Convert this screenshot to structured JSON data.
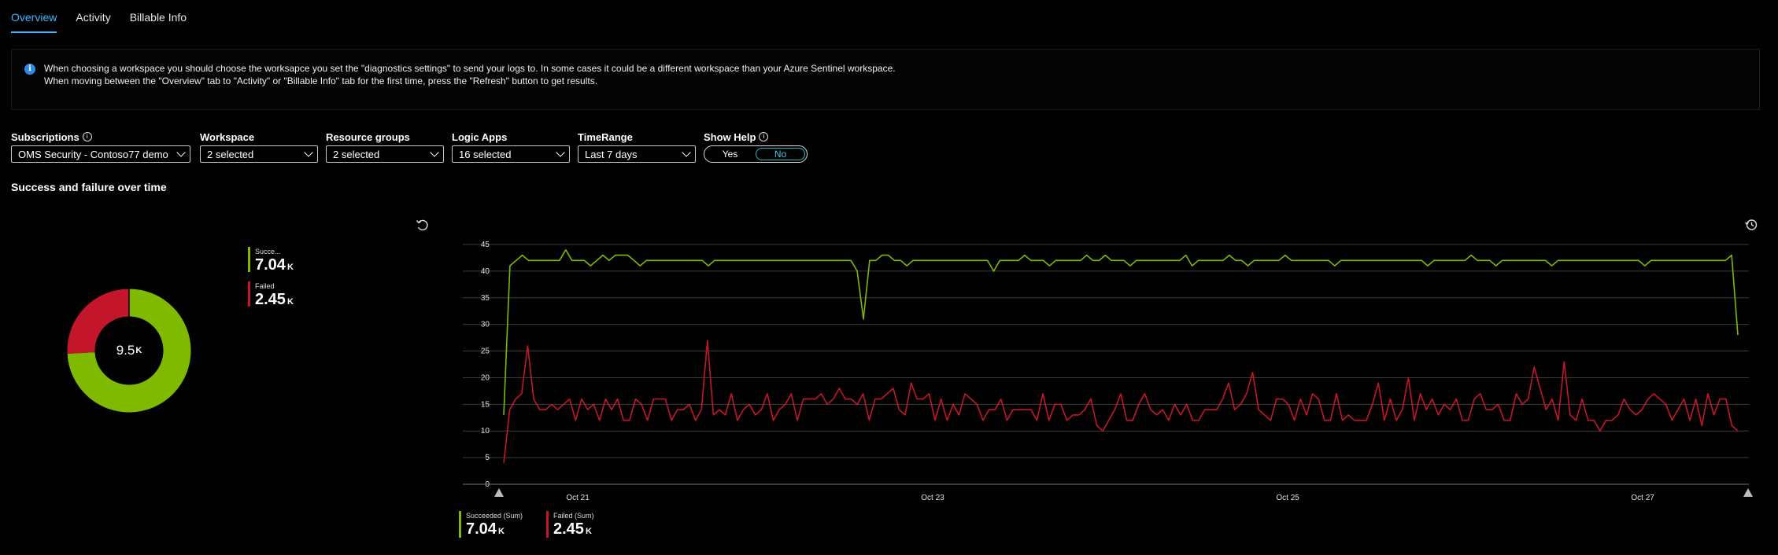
{
  "tabs": [
    {
      "label": "Overview",
      "active": true
    },
    {
      "label": "Activity",
      "active": false
    },
    {
      "label": "Billable Info",
      "active": false
    }
  ],
  "banner": {
    "line1": "When choosing a workspace you should choose the worksapce you set the \"diagnostics settings\" to send your logs to. In some cases it could be a different workspace than your Azure Sentinel workspace.",
    "line2": "When moving between the \"Overview\" tab to \"Activity\" or \"Billable Info\" tab for the first time, press the \"Refresh\" button to get results."
  },
  "filters": {
    "subscriptions": {
      "label": "Subscriptions",
      "value": "OMS Security - Contoso77 demo"
    },
    "workspace": {
      "label": "Workspace",
      "value": "2 selected"
    },
    "resource_groups": {
      "label": "Resource groups",
      "value": "2 selected"
    },
    "logic_apps": {
      "label": "Logic Apps",
      "value": "16 selected"
    },
    "time_range": {
      "label": "TimeRange",
      "value": "Last 7 days"
    },
    "show_help": {
      "label": "Show Help",
      "yes": "Yes",
      "no": "No",
      "selected": "No"
    }
  },
  "section_title": "Success and failure over time",
  "donut": {
    "total": "9.5",
    "total_unit": "K",
    "legend": [
      {
        "name": "Succe...",
        "value": "7.04",
        "unit": "K",
        "color": "#7fba00"
      },
      {
        "name": "Failed",
        "value": "2.45",
        "unit": "K",
        "color": "#c4162a"
      }
    ],
    "fractions": {
      "succeeded": 0.742,
      "failed": 0.258
    }
  },
  "chart_data": {
    "type": "line",
    "ylim": [
      0,
      45
    ],
    "yticks": [
      "0",
      "5",
      "10",
      "15",
      "20",
      "25",
      "30",
      "35",
      "40",
      "45"
    ],
    "xticks": [
      "Oct 21",
      "Oct 23",
      "Oct 25",
      "Oct 27"
    ],
    "xtick_positions": [
      0.0636,
      0.3474,
      0.6313,
      0.9151
    ],
    "series": [
      {
        "name": "Succeeded (Sum)",
        "total": "7.04",
        "unit": "K",
        "color": "#7fba00",
        "values": [
          13,
          41,
          42,
          43,
          42,
          42,
          42,
          42,
          42,
          42,
          44,
          42,
          42,
          42,
          41,
          42,
          43,
          42,
          43,
          43,
          43,
          42,
          41,
          42,
          42,
          42,
          42,
          42,
          42,
          42,
          42,
          42,
          42,
          41,
          42,
          42,
          42,
          42,
          42,
          42,
          42,
          42,
          42,
          42,
          42,
          42,
          42,
          42,
          42,
          42,
          42,
          42,
          42,
          42,
          42,
          42,
          42,
          40,
          31,
          42,
          42,
          43,
          43,
          42,
          42,
          41,
          42,
          42,
          42,
          42,
          42,
          42,
          42,
          42,
          42,
          42,
          42,
          42,
          42,
          40,
          42,
          42,
          42,
          42,
          43,
          42,
          42,
          42,
          41,
          42,
          42,
          42,
          42,
          42,
          43,
          42,
          42,
          43,
          42,
          42,
          42,
          41,
          42,
          42,
          42,
          42,
          42,
          42,
          42,
          42,
          43,
          41,
          42,
          42,
          42,
          42,
          42,
          43,
          42,
          42,
          41,
          42,
          42,
          42,
          42,
          42,
          43,
          42,
          42,
          42,
          42,
          42,
          42,
          42,
          41,
          42,
          42,
          42,
          42,
          42,
          42,
          42,
          42,
          42,
          42,
          42,
          42,
          42,
          42,
          41,
          42,
          42,
          42,
          42,
          42,
          42,
          43,
          42,
          42,
          42,
          41,
          42,
          42,
          42,
          42,
          42,
          42,
          42,
          42,
          41,
          42,
          42,
          42,
          42,
          42,
          42,
          42,
          42,
          42,
          42,
          42,
          42,
          42,
          42,
          41,
          42,
          42,
          42,
          42,
          42,
          42,
          42,
          42,
          42,
          42,
          42,
          42,
          42,
          43,
          28
        ]
      },
      {
        "name": "Failed (Sum)",
        "total": "2.45",
        "unit": "K",
        "color": "#c4162a",
        "values": [
          4,
          14,
          16,
          17,
          26,
          16,
          14,
          14,
          15,
          14,
          15,
          16,
          12,
          16,
          14,
          15,
          12,
          16,
          14,
          16,
          12,
          12,
          16,
          15,
          12,
          16,
          16,
          16,
          12,
          14,
          14,
          15,
          12,
          14,
          27,
          13,
          14,
          13,
          17,
          12,
          14,
          15,
          13,
          14,
          17,
          12,
          14,
          15,
          17,
          12,
          16,
          16,
          16,
          17,
          15,
          16,
          18,
          16,
          16,
          15,
          17,
          12,
          16,
          16,
          17,
          18,
          14,
          13,
          19,
          16,
          16,
          17,
          12,
          16,
          12,
          15,
          13,
          17,
          16,
          15,
          12,
          14,
          14,
          16,
          12,
          14,
          14,
          14,
          14,
          12,
          17,
          12,
          15,
          15,
          12,
          13,
          13,
          14,
          16,
          11,
          10,
          12,
          14,
          17,
          12,
          12,
          15,
          17,
          14,
          13,
          14,
          12,
          15,
          13,
          15,
          12,
          12,
          14,
          14,
          14,
          16,
          19,
          14,
          15,
          17,
          21,
          14,
          13,
          12,
          16,
          16,
          15,
          12,
          16,
          13,
          17,
          16,
          12,
          12,
          17,
          12,
          13,
          12,
          12,
          12,
          15,
          19,
          12,
          16,
          12,
          14,
          20,
          12,
          17,
          14,
          16,
          13,
          15,
          14,
          16,
          12,
          12,
          16,
          17,
          14,
          14,
          15,
          12,
          12,
          17,
          15,
          16,
          22,
          18,
          14,
          16,
          12,
          23,
          13,
          12,
          16,
          12,
          12,
          10,
          12,
          12,
          13,
          16,
          14,
          13,
          14,
          16,
          17,
          16,
          15,
          12,
          14,
          16,
          12,
          16,
          11,
          17,
          13,
          16,
          16,
          11,
          10
        ]
      }
    ]
  }
}
